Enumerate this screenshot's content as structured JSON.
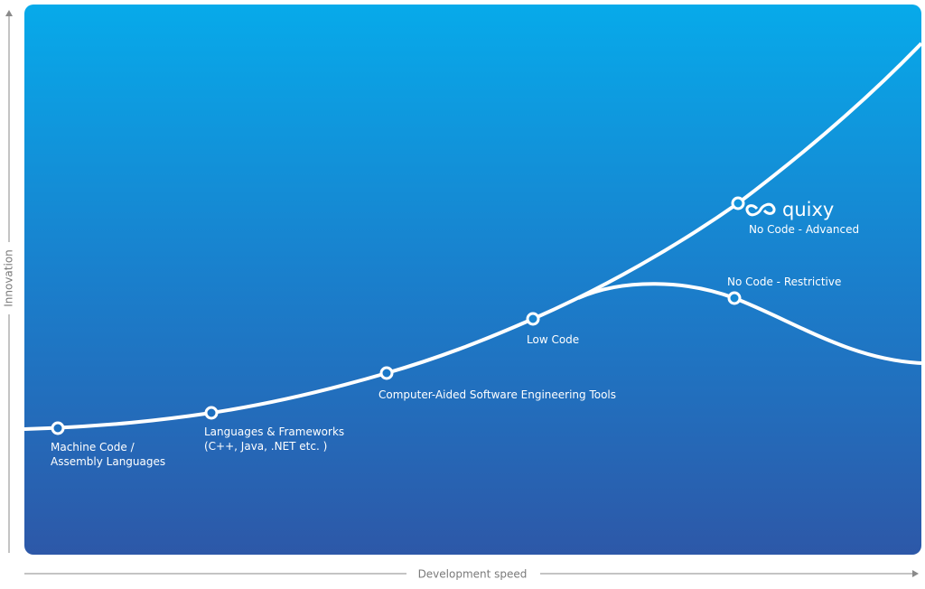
{
  "axes": {
    "y_label": "Innovation",
    "x_label": "Development speed"
  },
  "nodes": [
    {
      "lines": [
        "Machine Code /",
        "Assembly Languages"
      ]
    },
    {
      "lines": [
        "Languages & Frameworks",
        "(C++, Java, .NET etc. )"
      ]
    },
    {
      "lines": [
        "Computer-Aided Software Engineering Tools"
      ]
    },
    {
      "lines": [
        "Low Code"
      ]
    },
    {
      "brand": "quixy",
      "lines": [
        "No Code - Advanced"
      ]
    },
    {
      "lines": [
        "No Code - Restrictive"
      ]
    }
  ]
}
